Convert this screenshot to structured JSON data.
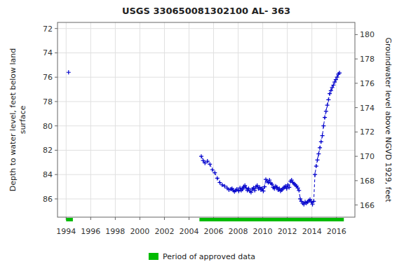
{
  "chart_data": {
    "type": "line",
    "title": "USGS 330650081302100 AL- 363",
    "y_label": "Depth to water level, feet below land\nsurface",
    "y2_label": "Groundwater level above NGVD 1929, feet",
    "xlim": [
      1993.3,
      2017.5
    ],
    "xticks": [
      1994,
      1996,
      1998,
      2000,
      2002,
      2004,
      2006,
      2008,
      2010,
      2012,
      2014,
      2016
    ],
    "ylim": [
      87.5,
      71.5
    ],
    "yticks": [
      72,
      74,
      76,
      78,
      80,
      82,
      84,
      86
    ],
    "y2lim": [
      165.0,
      181.0
    ],
    "y2ticks": [
      166,
      168,
      170,
      172,
      174,
      176,
      178,
      180
    ],
    "grid": true,
    "legend": "bottom",
    "series": [
      {
        "type": "line",
        "color": "#0000cc",
        "marker": "plus",
        "line_style": "none",
        "x": [
          1994.2
        ],
        "values": [
          75.6
        ]
      },
      {
        "type": "line",
        "color": "#0000cc",
        "marker": "plus",
        "line_style": "dashed",
        "x": [
          2005.0,
          2005.15,
          2005.3,
          2005.5,
          2005.7,
          2005.9,
          2006.1,
          2006.3,
          2006.5,
          2006.7,
          2006.9,
          2007.1,
          2007.25,
          2007.4,
          2007.5,
          2007.6,
          2007.7,
          2007.8,
          2007.9,
          2008.05,
          2008.15,
          2008.25,
          2008.35,
          2008.45,
          2008.55,
          2008.65,
          2008.75,
          2008.85,
          2008.95,
          2009.05,
          2009.15,
          2009.25,
          2009.35,
          2009.45,
          2009.55,
          2009.65,
          2009.75,
          2009.85,
          2009.95,
          2010.05,
          2010.15,
          2010.25,
          2010.35,
          2010.45,
          2010.55,
          2010.65,
          2010.75,
          2010.85,
          2010.95,
          2011.05,
          2011.15,
          2011.25,
          2011.35,
          2011.45,
          2011.55,
          2011.65,
          2011.75,
          2011.85,
          2011.95,
          2012.05,
          2012.15,
          2012.25,
          2012.35,
          2012.45,
          2012.55,
          2012.65,
          2012.75,
          2012.85,
          2012.95,
          2013.05,
          2013.15,
          2013.25,
          2013.35,
          2013.45,
          2013.55,
          2013.65,
          2013.75,
          2013.85,
          2013.95,
          2014.05,
          2014.15,
          2014.25,
          2014.35,
          2014.45,
          2014.55,
          2014.65,
          2014.75,
          2014.85,
          2014.95,
          2015.05,
          2015.15,
          2015.25,
          2015.35,
          2015.45,
          2015.55,
          2015.65,
          2015.75,
          2015.85,
          2015.95,
          2016.05,
          2016.15,
          2016.25
        ],
        "values": [
          82.5,
          82.85,
          83.05,
          82.9,
          83.15,
          83.6,
          83.85,
          84.3,
          84.65,
          84.85,
          84.95,
          85.1,
          85.25,
          85.2,
          85.15,
          85.3,
          85.4,
          85.3,
          85.2,
          85.35,
          85.1,
          85.3,
          85.2,
          85.0,
          84.9,
          85.1,
          85.3,
          85.15,
          85.35,
          85.45,
          85.2,
          85.1,
          85.3,
          85.0,
          84.9,
          85.15,
          85.05,
          85.25,
          85.15,
          85.35,
          85.0,
          84.4,
          84.55,
          84.65,
          84.45,
          84.7,
          84.8,
          85.05,
          85.15,
          84.95,
          85.05,
          85.25,
          85.15,
          85.35,
          85.25,
          85.15,
          85.05,
          84.95,
          85.15,
          84.85,
          85.05,
          84.55,
          84.45,
          84.65,
          84.75,
          84.85,
          84.95,
          85.1,
          85.3,
          86.0,
          86.2,
          86.35,
          86.45,
          86.25,
          86.35,
          86.25,
          86.15,
          86.05,
          86.25,
          86.45,
          86.2,
          84.0,
          83.3,
          82.8,
          82.3,
          81.8,
          81.3,
          80.8,
          80.0,
          79.3,
          78.8,
          78.3,
          77.85,
          77.35,
          77.1,
          76.85,
          76.65,
          76.4,
          76.2,
          76.0,
          75.75,
          75.65
        ]
      },
      {
        "type": "range",
        "name": "Period of approved data",
        "color": "#00bb00",
        "ranges": [
          [
            1994.0,
            1994.55
          ],
          [
            2004.85,
            2016.6
          ]
        ]
      }
    ]
  }
}
